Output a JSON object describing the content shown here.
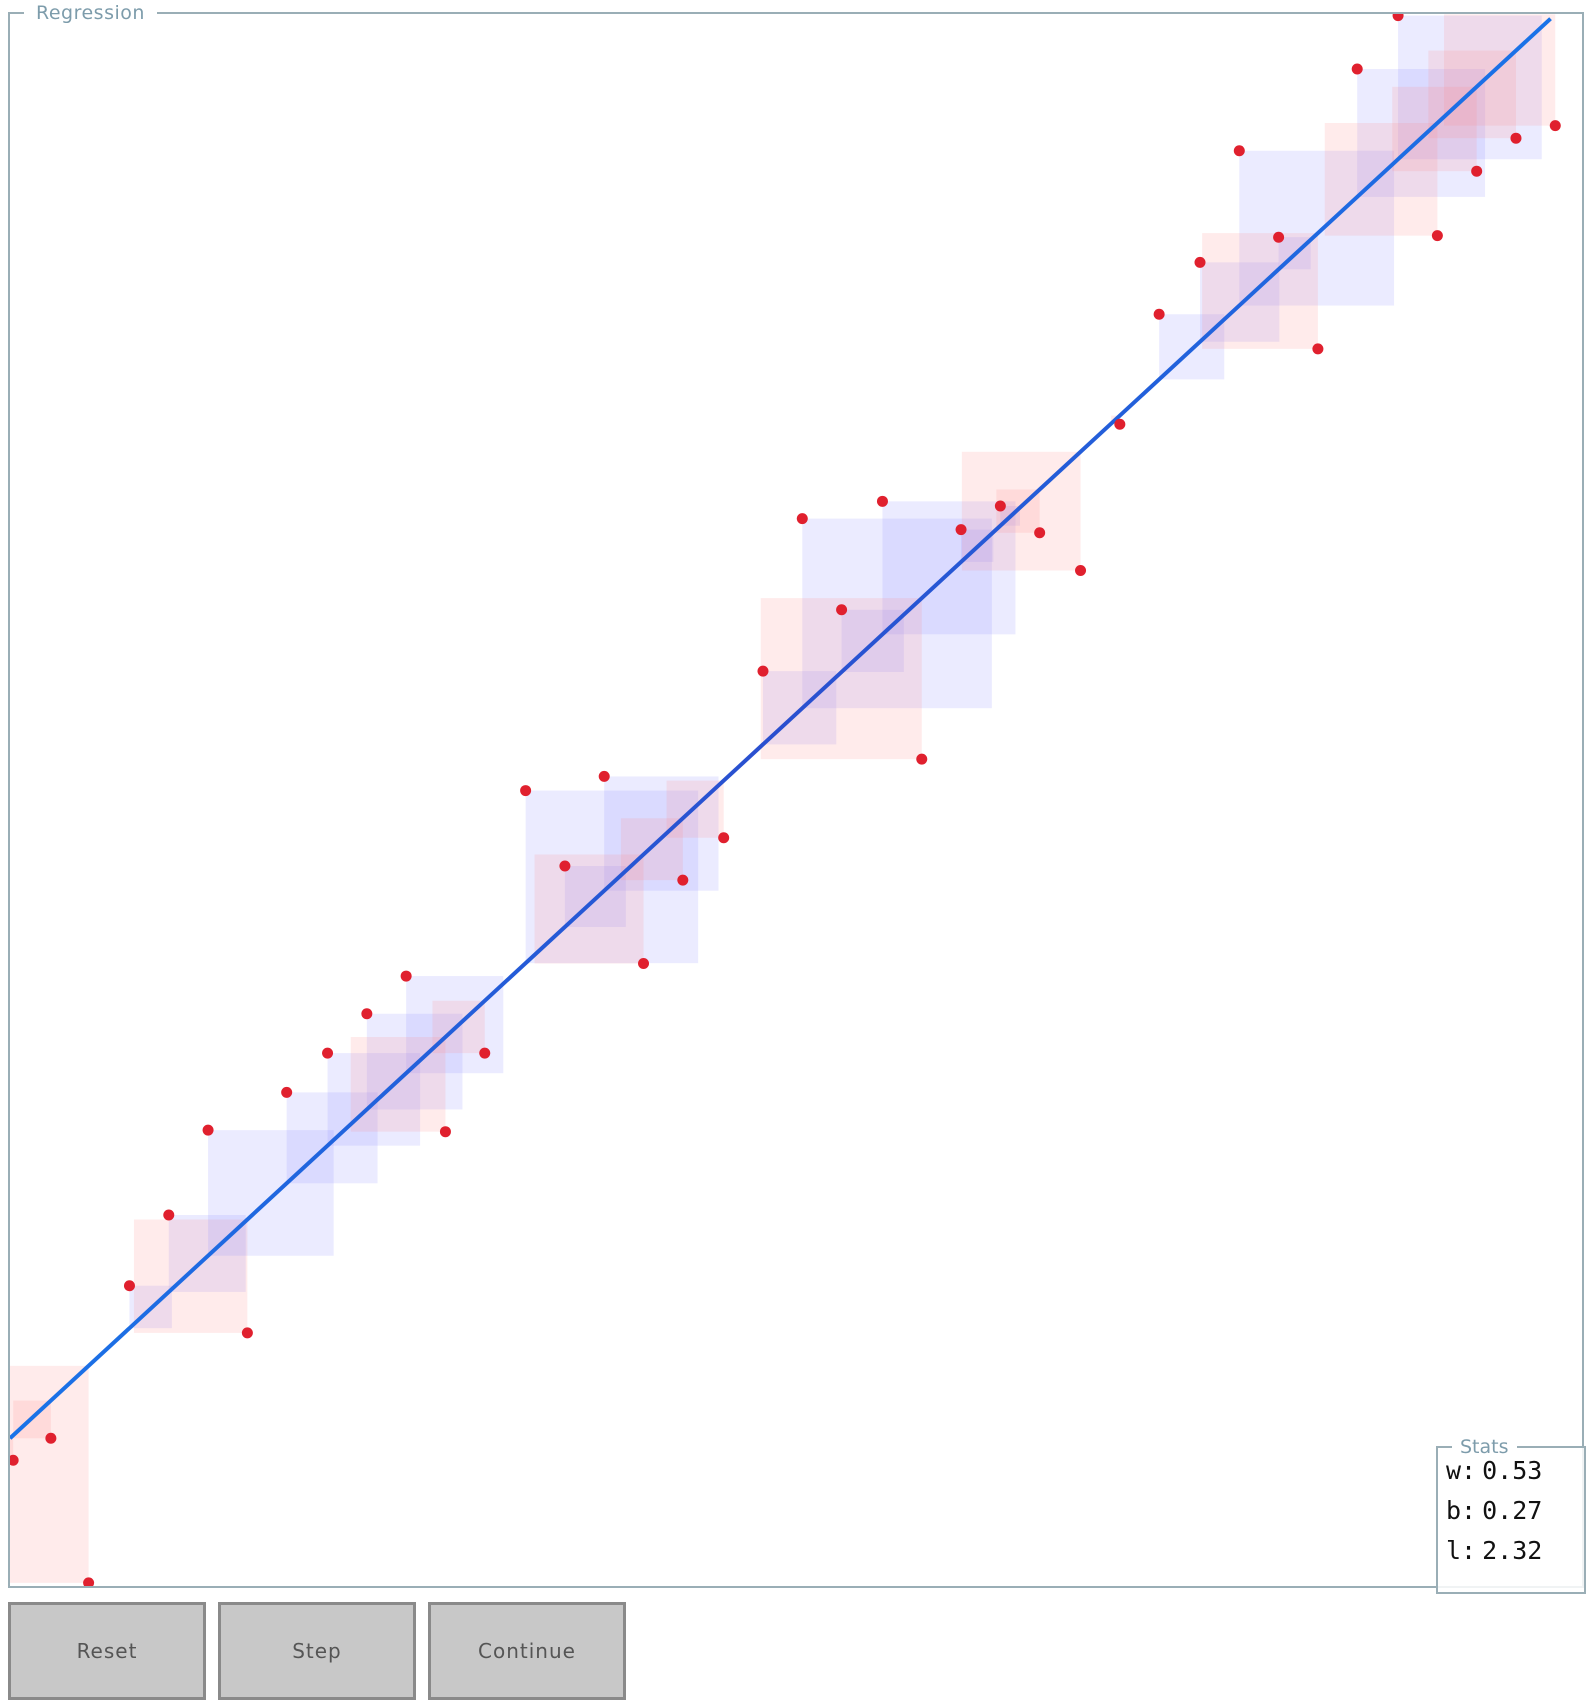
{
  "panel": {
    "title": "Regression"
  },
  "stats": {
    "title": "Stats",
    "rows": [
      {
        "label": "w:",
        "value": "0.53"
      },
      {
        "label": "b:",
        "value": "0.27"
      },
      {
        "label": "l:",
        "value": "2.32"
      }
    ]
  },
  "buttons": {
    "reset": "Reset",
    "step": "Step",
    "continue": "Continue"
  },
  "colors": {
    "line_start": "#1a73e8",
    "line_mid": "#2a4fcf",
    "point": "#e0202e",
    "square_red": "#ff8080",
    "square_blue": "#8080ff",
    "border": "#9aaeb6",
    "title_text": "#7d9cab"
  },
  "chart_data": {
    "type": "scatter",
    "xlim": [
      0,
      1
    ],
    "ylim": [
      0,
      1
    ],
    "fit_line": {
      "x0": 0.0,
      "y0": 0.094,
      "x1": 0.98,
      "y1": 0.997
    },
    "points": [
      {
        "x": 0.002,
        "y": 0.08
      },
      {
        "x": 0.026,
        "y": 0.094
      },
      {
        "x": 0.05,
        "y": 0.002
      },
      {
        "x": 0.076,
        "y": 0.191
      },
      {
        "x": 0.101,
        "y": 0.236
      },
      {
        "x": 0.151,
        "y": 0.161
      },
      {
        "x": 0.126,
        "y": 0.29
      },
      {
        "x": 0.176,
        "y": 0.314
      },
      {
        "x": 0.202,
        "y": 0.339
      },
      {
        "x": 0.227,
        "y": 0.364
      },
      {
        "x": 0.252,
        "y": 0.388
      },
      {
        "x": 0.277,
        "y": 0.289
      },
      {
        "x": 0.302,
        "y": 0.339
      },
      {
        "x": 0.328,
        "y": 0.506
      },
      {
        "x": 0.353,
        "y": 0.458
      },
      {
        "x": 0.378,
        "y": 0.515
      },
      {
        "x": 0.403,
        "y": 0.396
      },
      {
        "x": 0.428,
        "y": 0.449
      },
      {
        "x": 0.454,
        "y": 0.476
      },
      {
        "x": 0.479,
        "y": 0.582
      },
      {
        "x": 0.504,
        "y": 0.679
      },
      {
        "x": 0.529,
        "y": 0.621
      },
      {
        "x": 0.555,
        "y": 0.69
      },
      {
        "x": 0.58,
        "y": 0.526
      },
      {
        "x": 0.605,
        "y": 0.672
      },
      {
        "x": 0.63,
        "y": 0.687
      },
      {
        "x": 0.655,
        "y": 0.67
      },
      {
        "x": 0.681,
        "y": 0.646
      },
      {
        "x": 0.706,
        "y": 0.739
      },
      {
        "x": 0.731,
        "y": 0.809
      },
      {
        "x": 0.757,
        "y": 0.842
      },
      {
        "x": 0.782,
        "y": 0.913
      },
      {
        "x": 0.807,
        "y": 0.858
      },
      {
        "x": 0.832,
        "y": 0.787
      },
      {
        "x": 0.857,
        "y": 0.965
      },
      {
        "x": 0.883,
        "y": 0.999
      },
      {
        "x": 0.908,
        "y": 0.859
      },
      {
        "x": 0.933,
        "y": 0.9
      },
      {
        "x": 0.958,
        "y": 0.921
      },
      {
        "x": 0.983,
        "y": 0.929
      }
    ]
  }
}
